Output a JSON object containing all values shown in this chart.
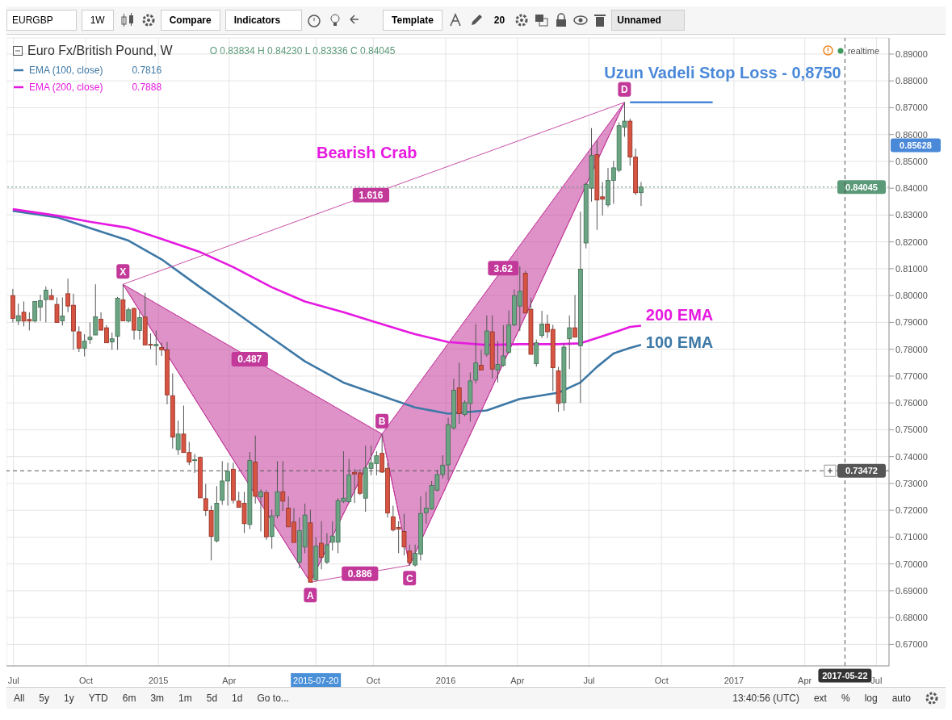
{
  "chart_data": {
    "type": "candlestick",
    "title": "Euro Fx/British Pound, W",
    "subtitle": "O 0.83834 H 0.84230 L 0.83336 C 0.84045",
    "x": [
      "2014-06-30",
      "2014-07-07",
      "2014-07-14",
      "2014-07-21",
      "2014-07-28",
      "2014-08-04",
      "2014-08-11",
      "2014-08-18",
      "2014-08-25",
      "2014-09-01",
      "2014-09-08",
      "2014-09-15",
      "2014-09-22",
      "2014-09-29",
      "2014-10-06",
      "2014-10-13",
      "2014-10-20",
      "2014-10-27",
      "2014-11-03",
      "2014-11-10",
      "2014-11-17",
      "2014-11-24",
      "2014-12-01",
      "2014-12-08",
      "2014-12-15",
      "2014-12-22",
      "2014-12-29",
      "2015-01-05",
      "2015-01-12",
      "2015-01-19",
      "2015-01-26",
      "2015-02-02",
      "2015-02-09",
      "2015-02-16",
      "2015-02-23",
      "2015-03-02",
      "2015-03-09",
      "2015-03-16",
      "2015-03-23",
      "2015-03-30",
      "2015-04-06",
      "2015-04-13",
      "2015-04-20",
      "2015-04-27",
      "2015-05-04",
      "2015-05-11",
      "2015-05-18",
      "2015-05-25",
      "2015-06-01",
      "2015-06-08",
      "2015-06-15",
      "2015-06-22",
      "2015-06-29",
      "2015-07-06",
      "2015-07-13",
      "2015-07-20",
      "2015-07-27",
      "2015-08-03",
      "2015-08-10",
      "2015-08-17",
      "2015-08-24",
      "2015-08-31",
      "2015-09-07",
      "2015-09-14",
      "2015-09-21",
      "2015-09-28",
      "2015-10-05",
      "2015-10-12",
      "2015-10-19",
      "2015-10-26",
      "2015-11-02",
      "2015-11-09",
      "2015-11-16",
      "2015-11-23",
      "2015-11-30",
      "2015-12-07",
      "2015-12-14",
      "2015-12-21",
      "2015-12-28",
      "2016-01-04",
      "2016-01-11",
      "2016-01-18",
      "2016-01-25",
      "2016-02-01",
      "2016-02-08",
      "2016-02-15",
      "2016-02-22",
      "2016-02-29",
      "2016-03-07",
      "2016-03-14",
      "2016-03-21",
      "2016-03-28",
      "2016-04-04",
      "2016-04-11",
      "2016-04-18",
      "2016-04-25",
      "2016-05-02",
      "2016-05-09",
      "2016-05-16",
      "2016-05-23",
      "2016-05-30",
      "2016-06-06",
      "2016-06-13",
      "2016-06-20",
      "2016-06-27",
      "2016-07-04",
      "2016-07-11",
      "2016-07-18",
      "2016-07-25",
      "2016-08-01",
      "2016-08-08",
      "2016-08-15",
      "2016-08-22",
      "2016-08-29",
      "2016-09-05"
    ],
    "ohlc": [
      [
        0.8,
        0.8025,
        0.79,
        0.7915
      ],
      [
        0.7905,
        0.797,
        0.789,
        0.7925
      ],
      [
        0.7938,
        0.7978,
        0.7885,
        0.7905
      ],
      [
        0.7911,
        0.7938,
        0.787,
        0.7905
      ],
      [
        0.7905,
        0.798,
        0.79,
        0.7978
      ],
      [
        0.7957,
        0.8003,
        0.7905,
        0.7981
      ],
      [
        0.7985,
        0.8034,
        0.79,
        0.802
      ],
      [
        0.8,
        0.8025,
        0.7985,
        0.7985
      ],
      [
        0.7967,
        0.7993,
        0.79,
        0.79
      ],
      [
        0.7906,
        0.7993,
        0.7888,
        0.7924
      ],
      [
        0.8007,
        0.8063,
        0.7938,
        0.7961
      ],
      [
        0.7964,
        0.8007,
        0.7798,
        0.7868
      ],
      [
        0.7865,
        0.7885,
        0.779,
        0.7804
      ],
      [
        0.7804,
        0.7856,
        0.7773,
        0.783
      ],
      [
        0.7836,
        0.79,
        0.782,
        0.7845
      ],
      [
        0.7853,
        0.8042,
        0.7853,
        0.7921
      ],
      [
        0.7912,
        0.7938,
        0.7871,
        0.7871
      ],
      [
        0.788,
        0.789,
        0.7824,
        0.7824
      ],
      [
        0.7827,
        0.7862,
        0.7798,
        0.7839
      ],
      [
        0.7848,
        0.7995,
        0.7798,
        0.799
      ],
      [
        0.7984,
        0.8042,
        0.7906,
        0.7906
      ],
      [
        0.7905,
        0.7955,
        0.79,
        0.7947
      ],
      [
        0.7952,
        0.7955,
        0.7836,
        0.7871
      ],
      [
        0.787,
        0.7941,
        0.7836,
        0.7918
      ],
      [
        0.792,
        0.801,
        0.7816,
        0.7816
      ],
      [
        0.7818,
        0.7859,
        0.78,
        0.7815
      ],
      [
        0.7813,
        0.787,
        0.774,
        0.7818
      ],
      [
        0.7807,
        0.7824,
        0.7775,
        0.7798
      ],
      [
        0.7798,
        0.7827,
        0.7595,
        0.763
      ],
      [
        0.7627,
        0.771,
        0.743,
        0.7473
      ],
      [
        0.7426,
        0.7534,
        0.7406,
        0.7484
      ],
      [
        0.7484,
        0.759,
        0.7415,
        0.7415
      ],
      [
        0.7415,
        0.7455,
        0.7368,
        0.738
      ],
      [
        0.7385,
        0.741,
        0.7339,
        0.7388
      ],
      [
        0.7397,
        0.74,
        0.7246,
        0.7246
      ],
      [
        0.7243,
        0.7298,
        0.7179,
        0.7199
      ],
      [
        0.7199,
        0.7217,
        0.7013,
        0.7103
      ],
      [
        0.7086,
        0.729,
        0.708,
        0.7226
      ],
      [
        0.7237,
        0.7383,
        0.722,
        0.7309
      ],
      [
        0.7309,
        0.7377,
        0.7217,
        0.7345
      ],
      [
        0.7353,
        0.7377,
        0.7225,
        0.7237
      ],
      [
        0.7234,
        0.7269,
        0.7211,
        0.7211
      ],
      [
        0.7226,
        0.7269,
        0.7115,
        0.715
      ],
      [
        0.7147,
        0.7417,
        0.713,
        0.7385
      ],
      [
        0.738,
        0.7478,
        0.7225,
        0.7252
      ],
      [
        0.725,
        0.7278,
        0.7121,
        0.7269
      ],
      [
        0.7266,
        0.7275,
        0.709,
        0.7101
      ],
      [
        0.7103,
        0.7202,
        0.7057,
        0.7179
      ],
      [
        0.718,
        0.7383,
        0.717,
        0.7269
      ],
      [
        0.7269,
        0.7383,
        0.7197,
        0.7234
      ],
      [
        0.7208,
        0.7252,
        0.7138,
        0.7138
      ],
      [
        0.7156,
        0.7208,
        0.708,
        0.708
      ],
      [
        0.7007,
        0.7173,
        0.6984,
        0.7124
      ],
      [
        0.7063,
        0.7225,
        0.704,
        0.7182
      ],
      [
        0.7153,
        0.7202,
        0.6932,
        0.6932
      ],
      [
        0.6941,
        0.71,
        0.6936,
        0.7066
      ],
      [
        0.7077,
        0.7159,
        0.698,
        0.7025
      ],
      [
        0.7007,
        0.7115,
        0.7,
        0.7071
      ],
      [
        0.7081,
        0.7159,
        0.705,
        0.7104
      ],
      [
        0.7081,
        0.7245,
        0.704,
        0.7236
      ],
      [
        0.7233,
        0.742,
        0.7227,
        0.7245
      ],
      [
        0.7232,
        0.7391,
        0.7227,
        0.7332
      ],
      [
        0.7341,
        0.7353,
        0.7227,
        0.7335
      ],
      [
        0.7339,
        0.7353,
        0.7257,
        0.7263
      ],
      [
        0.7245,
        0.7441,
        0.7194,
        0.7358
      ],
      [
        0.7356,
        0.7441,
        0.733,
        0.7377
      ],
      [
        0.7374,
        0.742,
        0.733,
        0.7403
      ],
      [
        0.7412,
        0.7484,
        0.7339,
        0.7342
      ],
      [
        0.7356,
        0.7377,
        0.7173,
        0.719
      ],
      [
        0.7176,
        0.7217,
        0.7121,
        0.7127
      ],
      [
        0.7136,
        0.7159,
        0.704,
        0.713
      ],
      [
        0.7121,
        0.7187,
        0.7032,
        0.7063
      ],
      [
        0.7048,
        0.7072,
        0.6995,
        0.7005
      ],
      [
        0.6996,
        0.7072,
        0.699,
        0.704
      ],
      [
        0.7037,
        0.7252,
        0.7013,
        0.7188
      ],
      [
        0.7191,
        0.7269,
        0.715,
        0.7208
      ],
      [
        0.7205,
        0.7309,
        0.7202,
        0.7292
      ],
      [
        0.7275,
        0.735,
        0.727,
        0.7333
      ],
      [
        0.7333,
        0.7405,
        0.7318,
        0.7368
      ],
      [
        0.7369,
        0.7545,
        0.7313,
        0.7519
      ],
      [
        0.7507,
        0.769,
        0.75,
        0.7647
      ],
      [
        0.7656,
        0.7749,
        0.7522,
        0.756
      ],
      [
        0.7557,
        0.761,
        0.755,
        0.7601
      ],
      [
        0.7598,
        0.7714,
        0.753,
        0.7682
      ],
      [
        0.7685,
        0.7894,
        0.7673,
        0.7749
      ],
      [
        0.774,
        0.7798,
        0.7723,
        0.7723
      ],
      [
        0.7781,
        0.7926,
        0.7772,
        0.7868
      ],
      [
        0.7865,
        0.7926,
        0.7691,
        0.7726
      ],
      [
        0.7723,
        0.783,
        0.7676,
        0.7743
      ],
      [
        0.774,
        0.789,
        0.7735,
        0.7775
      ],
      [
        0.7789,
        0.7945,
        0.7783,
        0.7891
      ],
      [
        0.7891,
        0.8023,
        0.7885,
        0.8
      ],
      [
        0.7961,
        0.8109,
        0.7868,
        0.8016
      ],
      [
        0.8083,
        0.8092,
        0.7935,
        0.7935
      ],
      [
        0.7949,
        0.7992,
        0.7781,
        0.7781
      ],
      [
        0.7746,
        0.7836,
        0.7735,
        0.7824
      ],
      [
        0.7851,
        0.7943,
        0.7842,
        0.7894
      ],
      [
        0.7894,
        0.7929,
        0.7842,
        0.7865
      ],
      [
        0.7874,
        0.7891,
        0.7644,
        0.7731
      ],
      [
        0.772,
        0.7735,
        0.7566,
        0.7598
      ],
      [
        0.7601,
        0.7822,
        0.7571,
        0.7808
      ],
      [
        0.7839,
        0.7926,
        0.7726,
        0.788
      ],
      [
        0.788,
        0.8002,
        0.7845,
        0.7845
      ],
      [
        0.7813,
        0.8313,
        0.76,
        0.8098
      ],
      [
        0.8196,
        0.842,
        0.8176,
        0.8415
      ],
      [
        0.84,
        0.8624,
        0.835,
        0.8522
      ],
      [
        0.8525,
        0.8578,
        0.8245,
        0.8356
      ],
      [
        0.8368,
        0.8423,
        0.8298,
        0.8359
      ],
      [
        0.8338,
        0.8476,
        0.833,
        0.8429
      ],
      [
        0.8429,
        0.8502,
        0.8342,
        0.8476
      ],
      [
        0.8467,
        0.8645,
        0.846,
        0.8633
      ],
      [
        0.8627,
        0.872,
        0.8592,
        0.865
      ],
      [
        0.865,
        0.8659,
        0.8484,
        0.8516
      ],
      [
        0.8516,
        0.8548,
        0.8375,
        0.8383
      ],
      [
        0.83834,
        0.8423,
        0.83336,
        0.84045
      ]
    ],
    "series": [
      {
        "name": "EMA (100, close)",
        "type": "line",
        "color": "#3d78a6",
        "x": [
          "2014-06-30",
          "2014-08-25",
          "2014-10-06",
          "2014-11-24",
          "2015-01-05",
          "2015-02-23",
          "2015-04-06",
          "2015-05-25",
          "2015-07-06",
          "2015-08-24",
          "2015-10-05",
          "2015-11-23",
          "2016-01-04",
          "2016-02-22",
          "2016-04-04",
          "2016-05-23",
          "2016-06-20",
          "2016-07-11",
          "2016-08-01",
          "2016-08-22",
          "2016-09-05"
        ],
        "values": [
          0.8316,
          0.8292,
          0.8252,
          0.8205,
          0.8135,
          0.8031,
          0.7944,
          0.7842,
          0.7755,
          0.7676,
          0.7633,
          0.7583,
          0.756,
          0.7572,
          0.7615,
          0.7638,
          0.7676,
          0.7734,
          0.7784,
          0.7805,
          0.7816
        ]
      },
      {
        "name": "EMA (200, close)",
        "type": "line",
        "color": "#e619e0",
        "x": [
          "2014-06-30",
          "2014-08-25",
          "2014-10-06",
          "2014-11-24",
          "2015-01-05",
          "2015-02-23",
          "2015-04-06",
          "2015-05-25",
          "2015-07-06",
          "2015-08-24",
          "2015-10-05",
          "2015-11-23",
          "2016-01-04",
          "2016-02-22",
          "2016-04-04",
          "2016-05-23",
          "2016-06-20",
          "2016-07-11",
          "2016-08-01",
          "2016-08-22",
          "2016-09-05"
        ],
        "values": [
          0.8322,
          0.8298,
          0.8275,
          0.8252,
          0.8211,
          0.8162,
          0.8106,
          0.8031,
          0.7978,
          0.7938,
          0.79,
          0.7856,
          0.7827,
          0.7816,
          0.7819,
          0.7819,
          0.7822,
          0.7842,
          0.7862,
          0.7883,
          0.7888
        ]
      },
      {
        "type": "line",
        "color": "#c2399a",
        "x": [
          "2014-11-17",
          "2015-07-13",
          "2015-10-12",
          "2015-11-16",
          "2016-08-15"
        ],
        "values": [
          0.8042,
          0.6932,
          0.7484,
          0.6995,
          0.872
        ]
      },
      {
        "type": "line",
        "color": "#c94fa6",
        "x": [
          "2014-11-17",
          "2015-10-12"
        ],
        "values": [
          0.8042,
          0.7484
        ]
      },
      {
        "type": "line",
        "color": "#c94fa6",
        "x": [
          "2015-07-13",
          "2015-11-16"
        ],
        "values": [
          0.6932,
          0.6995
        ]
      },
      {
        "type": "line",
        "color": "#c94fa6",
        "x": [
          "2014-11-17",
          "2016-08-15"
        ],
        "values": [
          0.8042,
          0.872
        ]
      },
      {
        "type": "line",
        "color": "#c94fa6",
        "x": [
          "2015-10-12",
          "2016-08-15"
        ],
        "values": [
          0.7484,
          0.872
        ]
      },
      {
        "type": "line",
        "color": "#4a88d8",
        "x": [
          "2016-08-22",
          "2016-12-05"
        ],
        "values": [
          0.872,
          0.872
        ]
      }
    ],
    "xlim": [
      "2014-06-22",
      "2017-07-17"
    ],
    "xticks": [
      {
        "value": "2014-07-01",
        "label": "Jul"
      },
      {
        "value": "2014-10-01",
        "label": "Oct"
      },
      {
        "value": "2015-01-01",
        "label": "2015"
      },
      {
        "value": "2015-04-01",
        "label": "Apr"
      },
      {
        "value": "2015-07-20",
        "label": "2015-07-20"
      },
      {
        "value": "2015-10-01",
        "label": "Oct"
      },
      {
        "value": "2016-01-01",
        "label": "2016"
      },
      {
        "value": "2016-04-01",
        "label": "Apr"
      },
      {
        "value": "2016-07-01",
        "label": "Jul"
      },
      {
        "value": "2016-10-01",
        "label": "Oct"
      },
      {
        "value": "2017-01-01",
        "label": "2017"
      },
      {
        "value": "2017-04-01",
        "label": "Apr"
      },
      {
        "value": "2017-07-01",
        "label": "Jul"
      }
    ],
    "ylim": [
      0.662,
      0.896
    ],
    "yticks": [
      {
        "value": 0.67,
        "label": "0.67000"
      },
      {
        "value": 0.68,
        "label": "0.68000"
      },
      {
        "value": 0.69,
        "label": "0.69000"
      },
      {
        "value": 0.7,
        "label": "0.70000"
      },
      {
        "value": 0.71,
        "label": "0.71000"
      },
      {
        "value": 0.72,
        "label": "0.72000"
      },
      {
        "value": 0.73,
        "label": "0.73000"
      },
      {
        "value": 0.74,
        "label": "0.74000"
      },
      {
        "value": 0.75,
        "label": "0.75000"
      },
      {
        "value": 0.76,
        "label": "0.76000"
      },
      {
        "value": 0.77,
        "label": "0.77000"
      },
      {
        "value": 0.78,
        "label": "0.78000"
      },
      {
        "value": 0.79,
        "label": "0.79000"
      },
      {
        "value": 0.8,
        "label": "0.80000"
      },
      {
        "value": 0.81,
        "label": "0.81000"
      },
      {
        "value": 0.82,
        "label": "0.82000"
      },
      {
        "value": 0.83,
        "label": "0.83000"
      },
      {
        "value": 0.84,
        "label": "0.84000"
      },
      {
        "value": 0.85,
        "label": "0.85000"
      },
      {
        "value": 0.86,
        "label": "0.86000"
      },
      {
        "value": 0.87,
        "label": "0.87000"
      },
      {
        "value": 0.88,
        "label": "0.88000"
      },
      {
        "value": 0.89,
        "label": "0.89000"
      }
    ],
    "ref_lines": [
      {
        "axis": "y",
        "value": 0.73472,
        "label": "0.73472",
        "color": "#555555",
        "line_style": "dashed"
      },
      {
        "axis": "y",
        "value": 0.84045,
        "label": "0.84045",
        "color": "#5b9a78",
        "line_style": "dotted"
      },
      {
        "axis": "x",
        "value": "2017-05-22",
        "label": "2017-05-22",
        "color": "#555555",
        "line_style": "dashed"
      }
    ],
    "grid": true,
    "legend": "top left",
    "annotations": [
      {
        "text": "X",
        "x": "2014-11-17",
        "y": 0.8042
      },
      {
        "text": "A",
        "x": "2015-07-13",
        "y": 0.6932
      },
      {
        "text": "B",
        "x": "2015-10-12",
        "y": 0.7484
      },
      {
        "text": "C",
        "x": "2015-11-16",
        "y": 0.6995
      },
      {
        "text": "D",
        "x": "2016-08-15",
        "y": 0.872
      },
      {
        "text": "0.487",
        "x": "2015-04-27",
        "y": 0.7763
      },
      {
        "text": "0.886",
        "x": "2015-09-14",
        "y": 0.6964
      },
      {
        "text": "1.616",
        "x": "2015-09-28",
        "y": 0.8374
      },
      {
        "text": "3.62",
        "x": "2016-03-14",
        "y": 0.8102
      },
      "Bearish Crab",
      "Uzun Vadeli Stop Loss - 0,8750",
      "200 EMA",
      "100 EMA",
      "0.85628",
      "realtime",
      "EURGBP",
      "1W",
      "Compare",
      "Indicators",
      "Template",
      "20",
      "Unnamed",
      "All",
      "5y",
      "1y",
      "YTD",
      "6m",
      "3m",
      "1m",
      "5d",
      "1d",
      "Go to...",
      "13:40:56 (UTC)",
      "ext",
      "%",
      "log",
      "auto",
      "0.7816",
      "0.7888"
    ]
  }
}
